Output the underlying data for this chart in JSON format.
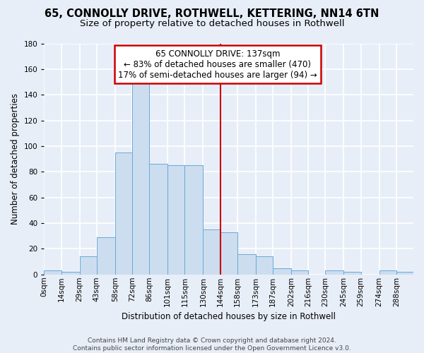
{
  "title": "65, CONNOLLY DRIVE, ROTHWELL, KETTERING, NN14 6TN",
  "subtitle": "Size of property relative to detached houses in Rothwell",
  "xlabel": "Distribution of detached houses by size in Rothwell",
  "ylabel": "Number of detached properties",
  "bar_labels": [
    "0sqm",
    "14sqm",
    "29sqm",
    "43sqm",
    "58sqm",
    "72sqm",
    "86sqm",
    "101sqm",
    "115sqm",
    "130sqm",
    "144sqm",
    "158sqm",
    "173sqm",
    "187sqm",
    "202sqm",
    "216sqm",
    "230sqm",
    "245sqm",
    "259sqm",
    "274sqm",
    "288sqm"
  ],
  "bar_values": [
    3,
    2,
    14,
    29,
    95,
    149,
    86,
    85,
    85,
    35,
    33,
    16,
    14,
    5,
    3,
    0,
    3,
    2,
    0,
    3,
    2
  ],
  "bar_color": "#ccddf0",
  "bar_edge_color": "#6aaad4",
  "property_line_label": "65 CONNOLLY DRIVE: 137sqm",
  "annotation_line1": "← 83% of detached houses are smaller (470)",
  "annotation_line2": "17% of semi-detached houses are larger (94) →",
  "annotation_box_color": "#ffffff",
  "annotation_border_color": "#cc0000",
  "ylim": [
    0,
    180
  ],
  "yticks": [
    0,
    20,
    40,
    60,
    80,
    100,
    120,
    140,
    160,
    180
  ],
  "footer": "Contains HM Land Registry data © Crown copyright and database right 2024.\nContains public sector information licensed under the Open Government Licence v3.0.",
  "bg_color": "#e8eef8",
  "grid_color": "#ffffff",
  "title_fontsize": 10.5,
  "subtitle_fontsize": 9.5,
  "axis_label_fontsize": 8.5,
  "tick_fontsize": 7.5,
  "footer_fontsize": 6.5,
  "annotation_fontsize": 8.5
}
